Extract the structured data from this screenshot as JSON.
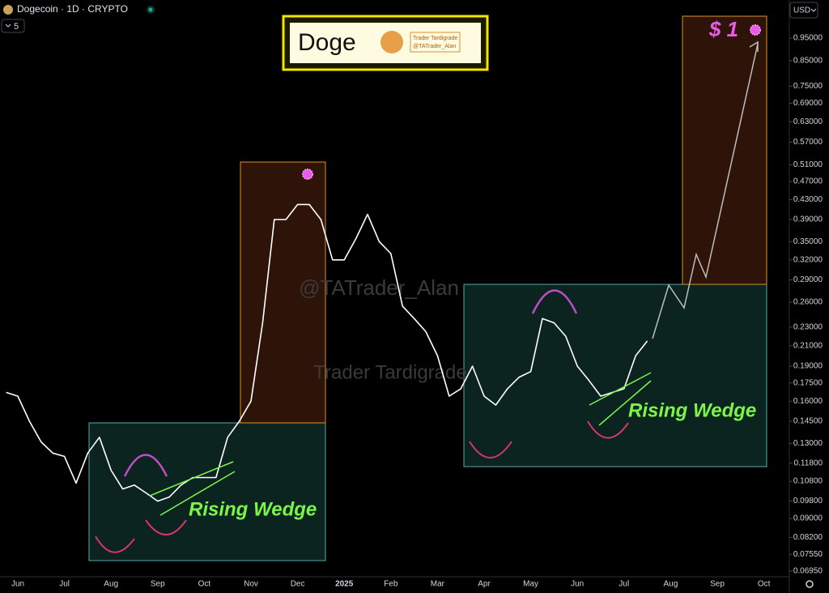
{
  "header": {
    "symbol": "Dogecoin · 1D · CRYPTO",
    "interval_count": "5",
    "currency": "USD"
  },
  "annotations": {
    "title": "Doge",
    "badge_line1": "Trader Tardigrade",
    "badge_line2": "@TATrader_Alan",
    "watermark_handle": "@TATrader_Alan",
    "watermark_name": "Trader Tardigrade",
    "wedge_left": "Rising Wedge",
    "wedge_right": "Rising Wedge",
    "target": "$ 1"
  },
  "chart_data": {
    "type": "line",
    "log": true,
    "grid": false,
    "color": "#ffffff",
    "categories": [
      null,
      "Jun",
      null,
      null,
      null,
      "Jul",
      null,
      null,
      null,
      "Aug",
      null,
      null,
      null,
      "Sep",
      null,
      null,
      null,
      "Oct",
      null,
      null,
      null,
      "Nov",
      null,
      null,
      null,
      "Dec",
      null,
      null,
      null,
      "2025",
      null,
      null,
      null,
      "Feb",
      null,
      null,
      null,
      "Mar",
      null,
      null,
      null,
      "Apr",
      null,
      null,
      null,
      "May",
      null,
      null,
      null,
      "Jun",
      null,
      null,
      null,
      "Jul",
      null,
      null,
      null,
      "Aug",
      null,
      null,
      null,
      "Sep",
      null,
      null,
      null,
      "Oct",
      null
    ],
    "values": [
      0.167,
      0.164,
      0.145,
      0.131,
      0.124,
      0.122,
      0.107,
      0.124,
      0.134,
      0.114,
      0.104,
      0.106,
      0.102,
      0.098,
      0.1,
      0.106,
      0.11,
      0.11,
      0.11,
      0.134,
      0.145,
      0.16,
      0.235,
      0.39,
      0.39,
      0.42,
      0.42,
      0.39,
      0.32,
      0.32,
      0.355,
      0.4,
      0.35,
      0.33,
      0.255,
      0.24,
      0.225,
      0.2,
      0.164,
      0.17,
      0.19,
      0.164,
      0.157,
      0.17,
      0.18,
      0.185,
      0.24,
      0.235,
      0.22,
      0.19,
      0.177,
      0.164,
      0.167,
      0.17,
      0.2,
      0.215,
      null,
      null,
      null,
      null,
      null,
      null,
      null,
      null,
      null,
      null,
      null
    ],
    "ylim": [
      0.0676,
      1.145
    ],
    "yticks": [
      {
        "value": 0.95,
        "label": "0.95000"
      },
      {
        "value": 0.85,
        "label": "0.85000"
      },
      {
        "value": 0.75,
        "label": "0.75000"
      },
      {
        "value": 0.69,
        "label": "0.69000"
      },
      {
        "value": 0.63,
        "label": "0.63000"
      },
      {
        "value": 0.57,
        "label": "0.57000"
      },
      {
        "value": 0.51,
        "label": "0.51000"
      },
      {
        "value": 0.47,
        "label": "0.47000"
      },
      {
        "value": 0.43,
        "label": "0.43000"
      },
      {
        "value": 0.39,
        "label": "0.39000"
      },
      {
        "value": 0.35,
        "label": "0.35000"
      },
      {
        "value": 0.32,
        "label": "0.32000"
      },
      {
        "value": 0.29,
        "label": "0.29000"
      },
      {
        "value": 0.26,
        "label": "0.26000"
      },
      {
        "value": 0.23,
        "label": "0.23000"
      },
      {
        "value": 0.21,
        "label": "0.21000"
      },
      {
        "value": 0.19,
        "label": "0.19000"
      },
      {
        "value": 0.175,
        "label": "0.17500"
      },
      {
        "value": 0.16,
        "label": "0.16000"
      },
      {
        "value": 0.145,
        "label": "0.14500"
      },
      {
        "value": 0.13,
        "label": "0.13000"
      },
      {
        "value": 0.118,
        "label": "0.11800"
      },
      {
        "value": 0.108,
        "label": "0.10800"
      },
      {
        "value": 0.098,
        "label": "0.09800"
      },
      {
        "value": 0.09,
        "label": "0.09000"
      },
      {
        "value": 0.082,
        "label": "0.08200"
      },
      {
        "value": 0.0755,
        "label": "0.07550"
      },
      {
        "value": 0.0695,
        "label": "0.06950"
      }
    ]
  }
}
